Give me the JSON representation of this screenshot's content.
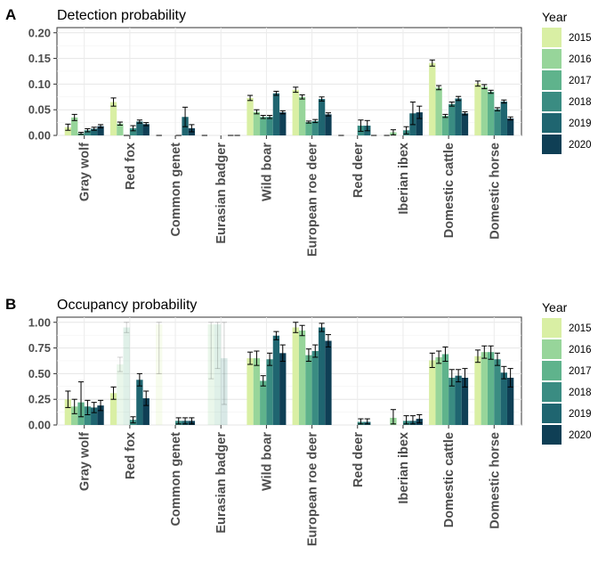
{
  "chart_data": [
    {
      "type": "bar",
      "panel": "A",
      "title": "Detection probability",
      "xlabel": "",
      "ylabel": "",
      "ylim": [
        0,
        0.21
      ],
      "yticks": [
        "0.00",
        "0.05",
        "0.10",
        "0.15",
        "0.20"
      ],
      "categories": [
        "Gray wolf",
        "Red fox",
        "Common genet",
        "Eurasian badger",
        "Wild boar",
        "European roe deer",
        "Red deer",
        "Iberian ibex",
        "Domestic cattle",
        "Domestic horse"
      ],
      "series": [
        {
          "name": "2015",
          "values": [
            0.016,
            0.065,
            0.0,
            0.0,
            0.073,
            0.089,
            0.0,
            0.0,
            0.141,
            0.101
          ],
          "lower": [
            0.01,
            0.057,
            0.0,
            0.0,
            0.068,
            0.084,
            0.0,
            0.0,
            0.135,
            0.096
          ],
          "upper": [
            0.022,
            0.073,
            0.0,
            0.0,
            0.078,
            0.094,
            0.0,
            0.0,
            0.147,
            0.106
          ]
        },
        {
          "name": "2016",
          "values": [
            0.035,
            0.023,
            null,
            null,
            0.046,
            0.075,
            null,
            0.006,
            0.093,
            0.095
          ],
          "lower": [
            0.029,
            0.02,
            null,
            null,
            0.042,
            0.071,
            null,
            0.001,
            0.089,
            0.091
          ],
          "upper": [
            0.041,
            0.026,
            null,
            null,
            0.05,
            0.079,
            null,
            0.011,
            0.097,
            0.099
          ]
        },
        {
          "name": "2017",
          "values": [
            0.004,
            0.0,
            null,
            null,
            0.036,
            0.026,
            null,
            null,
            0.038,
            0.085
          ],
          "lower": [
            0.002,
            0.0,
            null,
            null,
            0.033,
            0.024,
            null,
            null,
            0.035,
            0.082
          ],
          "upper": [
            0.006,
            0.0,
            null,
            null,
            0.039,
            0.028,
            null,
            null,
            0.041,
            0.088
          ]
        },
        {
          "name": "2018",
          "values": [
            0.01,
            0.014,
            0.0,
            null,
            0.036,
            0.028,
            0.019,
            0.01,
            0.061,
            0.051
          ],
          "lower": [
            0.007,
            0.009,
            0.0,
            null,
            0.033,
            0.025,
            0.008,
            0.003,
            0.057,
            0.048
          ],
          "upper": [
            0.013,
            0.019,
            0.0,
            null,
            0.039,
            0.031,
            0.03,
            0.017,
            0.065,
            0.054
          ]
        },
        {
          "name": "2019",
          "values": [
            0.013,
            0.027,
            0.036,
            0.0,
            0.082,
            0.071,
            0.019,
            0.043,
            0.072,
            0.066
          ],
          "lower": [
            0.01,
            0.024,
            0.017,
            0.0,
            0.078,
            0.067,
            0.009,
            0.021,
            0.068,
            0.063
          ],
          "upper": [
            0.016,
            0.03,
            0.055,
            0.0,
            0.086,
            0.075,
            0.029,
            0.065,
            0.076,
            0.069
          ]
        },
        {
          "name": "2020",
          "values": [
            0.018,
            0.022,
            0.014,
            0.0,
            0.045,
            0.041,
            0.0,
            0.045,
            0.043,
            0.033
          ],
          "lower": [
            0.015,
            0.019,
            0.007,
            0.0,
            0.042,
            0.038,
            0.0,
            0.033,
            0.04,
            0.03
          ],
          "upper": [
            0.021,
            0.025,
            0.021,
            0.0,
            0.048,
            0.044,
            0.0,
            0.057,
            0.046,
            0.036
          ]
        }
      ],
      "grid": true,
      "legend": {
        "title": "Year",
        "position": "right"
      }
    },
    {
      "type": "bar",
      "panel": "B",
      "title": "Occupancy probability",
      "xlabel": "",
      "ylabel": "",
      "ylim": [
        0,
        1.05
      ],
      "yticks": [
        "0.00",
        "0.25",
        "0.50",
        "0.75",
        "1.00"
      ],
      "categories": [
        "Gray wolf",
        "Red fox",
        "Common genet",
        "Eurasian badger",
        "Wild boar",
        "European roe deer",
        "Red deer",
        "Iberian ibex",
        "Domestic cattle",
        "Domestic horse"
      ],
      "faded_bars": [
        {
          "category": "Red fox",
          "series": "2016"
        },
        {
          "category": "Red fox",
          "series": "2017"
        },
        {
          "category": "Common genet",
          "series": "2015"
        },
        {
          "category": "Eurasian badger",
          "series": "2016"
        },
        {
          "category": "Eurasian badger",
          "series": "2017"
        },
        {
          "category": "Eurasian badger",
          "series": "2018"
        }
      ],
      "series": [
        {
          "name": "2015",
          "values": [
            0.25,
            0.31,
            0.98,
            null,
            0.65,
            0.95,
            null,
            null,
            0.63,
            0.67
          ],
          "lower": [
            0.17,
            0.25,
            0.5,
            null,
            0.59,
            0.9,
            null,
            null,
            0.56,
            0.61
          ],
          "upper": [
            0.33,
            0.37,
            1.0,
            null,
            0.71,
            1.0,
            null,
            null,
            0.7,
            0.73
          ]
        },
        {
          "name": "2016",
          "values": [
            0.18,
            0.59,
            null,
            0.98,
            0.65,
            0.92,
            null,
            0.07,
            0.66,
            0.71
          ],
          "lower": [
            0.11,
            0.52,
            null,
            0.45,
            0.58,
            0.87,
            null,
            0.01,
            0.6,
            0.65
          ],
          "upper": [
            0.25,
            0.66,
            null,
            1.0,
            0.72,
            0.97,
            null,
            0.15,
            0.72,
            0.77
          ]
        },
        {
          "name": "2017",
          "values": [
            0.22,
            0.95,
            null,
            0.98,
            0.43,
            0.68,
            null,
            null,
            0.69,
            0.71
          ],
          "lower": [
            0.08,
            0.9,
            null,
            0.55,
            0.38,
            0.62,
            null,
            null,
            0.62,
            0.64
          ],
          "upper": [
            0.42,
            1.0,
            null,
            1.0,
            0.48,
            0.74,
            null,
            null,
            0.76,
            0.77
          ]
        },
        {
          "name": "2018",
          "values": [
            0.18,
            0.05,
            0.04,
            0.65,
            0.64,
            0.72,
            0.03,
            0.04,
            0.46,
            0.64
          ],
          "lower": [
            0.1,
            0.02,
            0.01,
            0.2,
            0.58,
            0.66,
            0.01,
            0.01,
            0.38,
            0.58
          ],
          "upper": [
            0.24,
            0.08,
            0.07,
            1.0,
            0.7,
            0.78,
            0.06,
            0.09,
            0.54,
            0.7
          ]
        },
        {
          "name": "2019",
          "values": [
            0.17,
            0.44,
            0.04,
            null,
            0.87,
            0.95,
            0.03,
            0.04,
            0.48,
            0.51
          ],
          "lower": [
            0.12,
            0.38,
            0.01,
            null,
            0.83,
            0.91,
            0.01,
            0.01,
            0.42,
            0.45
          ],
          "upper": [
            0.22,
            0.5,
            0.07,
            null,
            0.91,
            0.99,
            0.06,
            0.09,
            0.54,
            0.57
          ]
        },
        {
          "name": "2020",
          "values": [
            0.19,
            0.26,
            0.04,
            null,
            0.7,
            0.82,
            null,
            0.06,
            0.46,
            0.46
          ],
          "lower": [
            0.14,
            0.19,
            0.01,
            null,
            0.62,
            0.76,
            null,
            0.02,
            0.37,
            0.37
          ],
          "upper": [
            0.24,
            0.33,
            0.07,
            null,
            0.78,
            0.88,
            null,
            0.1,
            0.55,
            0.55
          ]
        }
      ],
      "grid": true,
      "legend": {
        "title": "Year",
        "position": "right"
      }
    }
  ],
  "colors": {
    "2015": "#d9efa4",
    "2016": "#97d59a",
    "2017": "#5fb38c",
    "2018": "#3a8c82",
    "2019": "#1f6570",
    "2020": "#0f3f55",
    "grid": "#ebebeb",
    "axis_text": "#4d4d4d",
    "error_bar": "#000000"
  },
  "panels": {
    "A": {
      "letter": "A",
      "title": "Detection probability"
    },
    "B": {
      "letter": "B",
      "title": "Occupancy probability"
    }
  },
  "legend": {
    "title": "Year",
    "items": [
      "2015",
      "2016",
      "2017",
      "2018",
      "2019",
      "2020"
    ]
  }
}
